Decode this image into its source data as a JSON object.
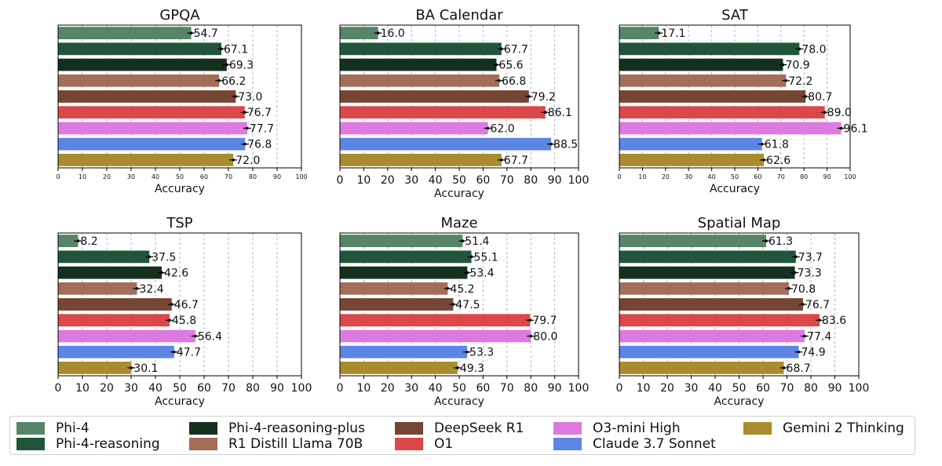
{
  "models": [
    {
      "name": "Phi-4",
      "color": "#568568"
    },
    {
      "name": "Phi-4-reasoning",
      "color": "#21553a"
    },
    {
      "name": "Phi-4-reasoning-plus",
      "color": "#14301f"
    },
    {
      "name": "R1 Distill Llama 70B",
      "color": "#a26e58"
    },
    {
      "name": "DeepSeek R1",
      "color": "#774533"
    },
    {
      "name": "O1",
      "color": "#dc4749"
    },
    {
      "name": "O3-mini High",
      "color": "#dd7ae0"
    },
    {
      "name": "Claude 3.7 Sonnet",
      "color": "#5b86e5"
    },
    {
      "name": "Gemini 2 Thinking",
      "color": "#a98c2d"
    }
  ],
  "chart_data": [
    {
      "type": "bar",
      "orientation": "horizontal",
      "title": "GPQA",
      "xlabel": "Accuracy",
      "xlim": [
        0,
        100
      ],
      "xticks": [
        "0",
        "10",
        "20",
        "30",
        "40",
        "50",
        "60",
        "70",
        "80",
        "90",
        "100"
      ],
      "grid": "vertical-dashed",
      "categories": [
        "Phi-4",
        "Phi-4-reasoning",
        "Phi-4-reasoning-plus",
        "R1 Distill Llama 70B",
        "DeepSeek R1",
        "O1",
        "O3-mini High",
        "Claude 3.7 Sonnet",
        "Gemini 2 Thinking"
      ],
      "values": [
        54.7,
        67.1,
        69.3,
        66.2,
        73.0,
        76.7,
        77.7,
        76.8,
        72.0
      ],
      "labels": [
        "54.7",
        "67.1",
        "69.3",
        "66.2",
        "73.0",
        "76.7",
        "77.7",
        "76.8",
        "72.0"
      ]
    },
    {
      "type": "bar",
      "orientation": "horizontal",
      "title": "BA Calendar",
      "xlabel": "Accuracy",
      "xlim": [
        0,
        100
      ],
      "xticks": [
        "0",
        "10",
        "20",
        "30",
        "40",
        "50",
        "60",
        "70",
        "80",
        "90",
        "100"
      ],
      "grid": "vertical-dashed",
      "categories": [
        "Phi-4",
        "Phi-4-reasoning",
        "Phi-4-reasoning-plus",
        "R1 Distill Llama 70B",
        "DeepSeek R1",
        "O1",
        "O3-mini High",
        "Claude 3.7 Sonnet",
        "Gemini 2 Thinking"
      ],
      "values": [
        16.0,
        67.7,
        65.6,
        66.8,
        79.2,
        86.1,
        62.0,
        88.5,
        67.7
      ],
      "labels": [
        "16.0",
        "67.7",
        "65.6",
        "66.8",
        "79.2",
        "86.1",
        "62.0",
        "88.5",
        "67.7"
      ]
    },
    {
      "type": "bar",
      "orientation": "horizontal",
      "title": "SAT",
      "xlabel": "Accuracy",
      "xlim": [
        0,
        100
      ],
      "xticks": [
        "0",
        "10",
        "20",
        "30",
        "40",
        "50",
        "60",
        "70",
        "80",
        "90",
        "100"
      ],
      "grid": "vertical-dashed",
      "categories": [
        "Phi-4",
        "Phi-4-reasoning",
        "Phi-4-reasoning-plus",
        "R1 Distill Llama 70B",
        "DeepSeek R1",
        "O1",
        "O3-mini High",
        "Claude 3.7 Sonnet",
        "Gemini 2 Thinking"
      ],
      "values": [
        17.1,
        78.0,
        70.9,
        72.2,
        80.7,
        89.0,
        96.1,
        61.8,
        62.6
      ],
      "labels": [
        "17.1",
        "78.0",
        "70.9",
        "72.2",
        "80.7",
        "89.0",
        "96.1",
        "61.8",
        "62.6"
      ]
    },
    {
      "type": "bar",
      "orientation": "horizontal",
      "title": "TSP",
      "xlabel": "Accuracy",
      "xlim": [
        0,
        100
      ],
      "xticks": [
        "0",
        "10",
        "20",
        "30",
        "40",
        "50",
        "60",
        "70",
        "80",
        "90",
        "100"
      ],
      "grid": "vertical-dashed",
      "categories": [
        "Phi-4",
        "Phi-4-reasoning",
        "Phi-4-reasoning-plus",
        "R1 Distill Llama 70B",
        "DeepSeek R1",
        "O1",
        "O3-mini High",
        "Claude 3.7 Sonnet",
        "Gemini 2 Thinking"
      ],
      "values": [
        8.2,
        37.5,
        42.6,
        32.4,
        46.7,
        45.8,
        56.4,
        47.7,
        30.1
      ],
      "labels": [
        "8.2",
        "37.5",
        "42.6",
        "32.4",
        "46.7",
        "45.8",
        "56.4",
        "47.7",
        "30.1"
      ]
    },
    {
      "type": "bar",
      "orientation": "horizontal",
      "title": "Maze",
      "xlabel": "Accuracy",
      "xlim": [
        0,
        100
      ],
      "xticks": [
        "0",
        "10",
        "20",
        "30",
        "40",
        "50",
        "60",
        "70",
        "80",
        "90",
        "100"
      ],
      "grid": "vertical-dashed",
      "categories": [
        "Phi-4",
        "Phi-4-reasoning",
        "Phi-4-reasoning-plus",
        "R1 Distill Llama 70B",
        "DeepSeek R1",
        "O1",
        "O3-mini High",
        "Claude 3.7 Sonnet",
        "Gemini 2 Thinking"
      ],
      "values": [
        51.4,
        55.1,
        53.4,
        45.2,
        47.5,
        79.7,
        80.0,
        53.3,
        49.3
      ],
      "labels": [
        "51.4",
        "55.1",
        "53.4",
        "45.2",
        "47.5",
        "79.7",
        "80.0",
        "53.3",
        "49.3"
      ]
    },
    {
      "type": "bar",
      "orientation": "horizontal",
      "title": "Spatial Map",
      "xlabel": "Accuracy",
      "xlim": [
        0,
        100
      ],
      "xticks": [
        "0",
        "10",
        "20",
        "30",
        "40",
        "50",
        "60",
        "70",
        "80",
        "90",
        "100"
      ],
      "grid": "vertical-dashed",
      "categories": [
        "Phi-4",
        "Phi-4-reasoning",
        "Phi-4-reasoning-plus",
        "R1 Distill Llama 70B",
        "DeepSeek R1",
        "O1",
        "O3-mini High",
        "Claude 3.7 Sonnet",
        "Gemini 2 Thinking"
      ],
      "values": [
        61.3,
        73.7,
        73.3,
        70.8,
        76.7,
        83.6,
        77.4,
        74.9,
        68.7
      ],
      "labels": [
        "61.3",
        "73.7",
        "73.3",
        "70.8",
        "76.7",
        "83.6",
        "77.4",
        "74.9",
        "68.7"
      ]
    }
  ]
}
